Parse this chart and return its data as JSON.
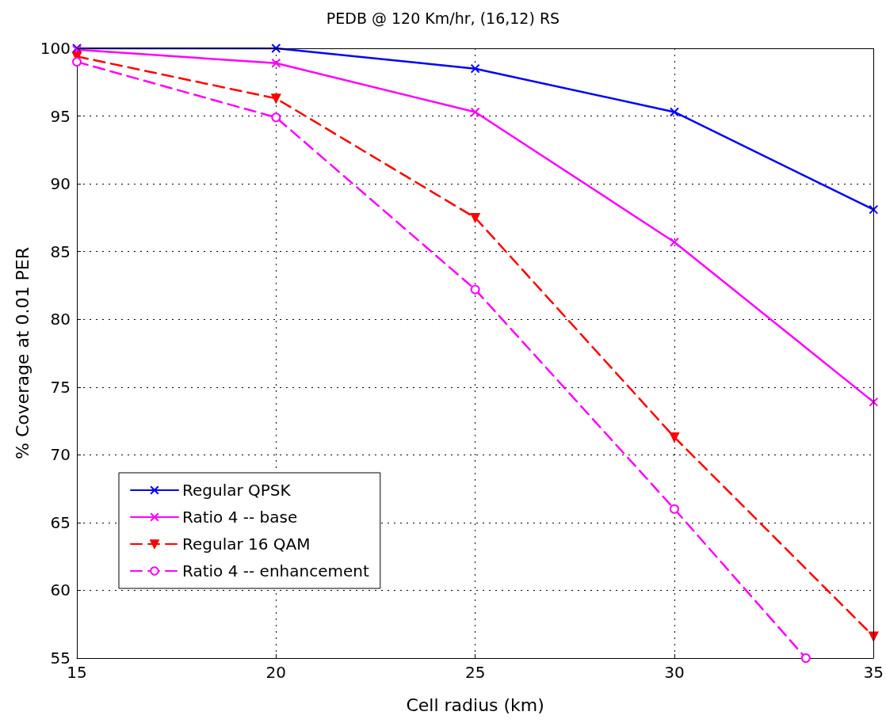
{
  "chart_data": {
    "type": "line",
    "title": "PEDB @ 120 Km/hr, (16,12) RS",
    "xlabel": "Cell radius (km)",
    "ylabel": "% Coverage at 0.01 PER",
    "x": [
      15,
      20,
      25,
      30,
      35
    ],
    "series": [
      {
        "name": "Regular QPSK",
        "color": "#0000ff",
        "values": [
          100,
          100,
          98.5,
          95.3,
          88.1
        ],
        "marker": "cross",
        "line_style": "solid"
      },
      {
        "name": "Ratio 4 -- base",
        "color": "#ff00ff",
        "values": [
          99.9,
          98.9,
          95.3,
          85.7,
          73.9
        ],
        "marker": "cross",
        "line_style": "solid"
      },
      {
        "name": "Regular 16 QAM",
        "color": "#ff0000",
        "values": [
          99.4,
          96.3,
          87.5,
          71.3,
          56.6
        ],
        "marker": "triangle",
        "line_style": "dashed"
      },
      {
        "name": "Ratio 4 -- enhancement",
        "color": "#ff00ff",
        "x": [
          15,
          20,
          25,
          30,
          33.3
        ],
        "values": [
          99.0,
          94.9,
          82.2,
          66.0,
          55
        ],
        "marker": "circle",
        "line_style": "dashed"
      }
    ],
    "xlim": [
      15,
      35
    ],
    "xticks": [
      15,
      20,
      25,
      30,
      35
    ],
    "ylim": [
      55,
      100
    ],
    "yticks": [
      55,
      60,
      65,
      70,
      75,
      80,
      85,
      90,
      95,
      100
    ],
    "grid": true,
    "legend": "bottom left"
  }
}
